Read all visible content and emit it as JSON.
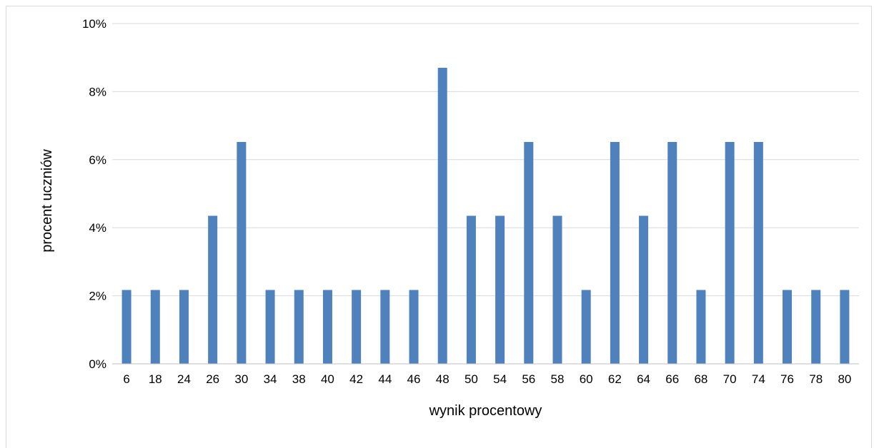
{
  "chart_data": {
    "type": "bar",
    "title": "",
    "xlabel": "wynik procentowy",
    "ylabel": "procent uczniów",
    "categories": [
      "6",
      "18",
      "24",
      "26",
      "30",
      "34",
      "38",
      "40",
      "42",
      "44",
      "46",
      "48",
      "50",
      "54",
      "56",
      "58",
      "60",
      "62",
      "64",
      "66",
      "68",
      "70",
      "74",
      "76",
      "78",
      "80"
    ],
    "values": [
      2.17,
      2.17,
      2.17,
      4.35,
      6.52,
      2.17,
      2.17,
      2.17,
      2.17,
      2.17,
      2.17,
      8.7,
      4.35,
      4.35,
      6.52,
      4.35,
      2.17,
      6.52,
      4.35,
      6.52,
      2.17,
      6.52,
      6.52,
      2.17,
      2.17,
      2.17
    ],
    "ylim": [
      0,
      10
    ],
    "yticks": [
      "0%",
      "2%",
      "4%",
      "6%",
      "8%",
      "10%"
    ],
    "grid": true,
    "legend": "none",
    "colors": {
      "bar": "#4f81bd",
      "grid": "#d9d9d9",
      "axis": "#bfbfbf"
    }
  }
}
